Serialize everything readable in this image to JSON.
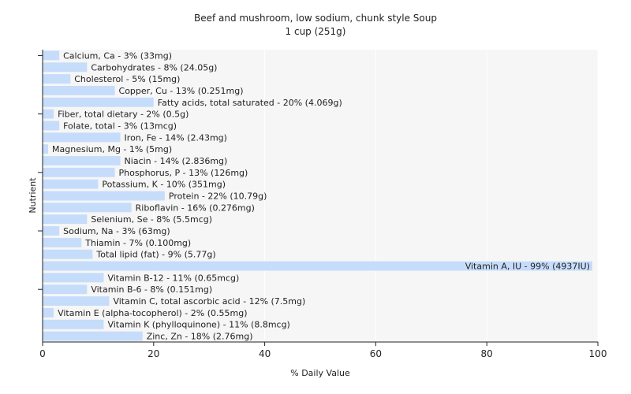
{
  "chart_data": {
    "type": "bar",
    "orientation": "horizontal",
    "title": "Beef and mushroom, low sodium, chunk style Soup",
    "subtitle": "1 cup (251g)",
    "xlabel": "% Daily Value",
    "ylabel": "Nutrient",
    "xlim": [
      0,
      100
    ],
    "xticks": [
      "0",
      "20",
      "40",
      "60",
      "80",
      "100"
    ],
    "grid": true,
    "bar_color": "#c6dcfb",
    "plot_background": "#f6f6f6",
    "categories": [
      "Calcium, Ca",
      "Carbohydrates",
      "Cholesterol",
      "Copper, Cu",
      "Fatty acids, total saturated",
      "Fiber, total dietary",
      "Folate, total",
      "Iron, Fe",
      "Magnesium, Mg",
      "Niacin",
      "Phosphorus, P",
      "Potassium, K",
      "Protein",
      "Riboflavin",
      "Selenium, Se",
      "Sodium, Na",
      "Thiamin",
      "Total lipid (fat)",
      "Vitamin A, IU",
      "Vitamin B-12",
      "Vitamin B-6",
      "Vitamin C, total ascorbic acid",
      "Vitamin E (alpha-tocopherol)",
      "Vitamin K (phylloquinone)",
      "Zinc, Zn"
    ],
    "values": [
      3,
      8,
      5,
      13,
      20,
      2,
      3,
      14,
      1,
      14,
      13,
      10,
      22,
      16,
      8,
      3,
      7,
      9,
      99,
      11,
      8,
      12,
      2,
      11,
      18
    ],
    "labels": [
      "Calcium, Ca - 3% (33mg)",
      "Carbohydrates - 8% (24.05g)",
      "Cholesterol - 5% (15mg)",
      "Copper, Cu - 13% (0.251mg)",
      "Fatty acids, total saturated - 20% (4.069g)",
      "Fiber, total dietary - 2% (0.5g)",
      "Folate, total - 3% (13mcg)",
      "Iron, Fe - 14% (2.43mg)",
      "Magnesium, Mg - 1% (5mg)",
      "Niacin - 14% (2.836mg)",
      "Phosphorus, P - 13% (126mg)",
      "Potassium, K - 10% (351mg)",
      "Protein - 22% (10.79g)",
      "Riboflavin - 16% (0.276mg)",
      "Selenium, Se - 8% (5.5mcg)",
      "Sodium, Na - 3% (63mg)",
      "Thiamin - 7% (0.100mg)",
      "Total lipid (fat) - 9% (5.77g)",
      "Vitamin A, IU - 99% (4937IU)",
      "Vitamin B-12 - 11% (0.65mcg)",
      "Vitamin B-6 - 8% (0.151mg)",
      "Vitamin C, total ascorbic acid - 12% (7.5mg)",
      "Vitamin E (alpha-tocopherol) - 2% (0.55mg)",
      "Vitamin K (phylloquinone) - 11% (8.8mcg)",
      "Zinc, Zn - 18% (2.76mg)"
    ]
  }
}
